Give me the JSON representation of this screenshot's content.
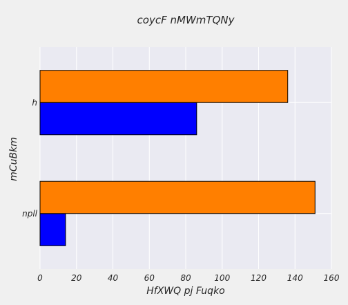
{
  "chart_data": {
    "type": "bar",
    "orientation": "horizontal",
    "title": "coycF nMWmTQNy",
    "xlabel": "HfXWQ pj Fuqko",
    "ylabel": "mCuBkm",
    "categories": [
      "h",
      "npll"
    ],
    "series": [
      {
        "values": [
          86,
          14
        ],
        "color": "#0000ff"
      },
      {
        "values": [
          136,
          151
        ],
        "color": "#ff7f00"
      }
    ],
    "xlim": [
      0,
      160
    ],
    "xticks": [
      0,
      20,
      40,
      60,
      80,
      100,
      120,
      140,
      160
    ],
    "grid": true,
    "legend": "none",
    "plot_background": "#eaeaf2",
    "figure_background": "#f0f0f0"
  }
}
